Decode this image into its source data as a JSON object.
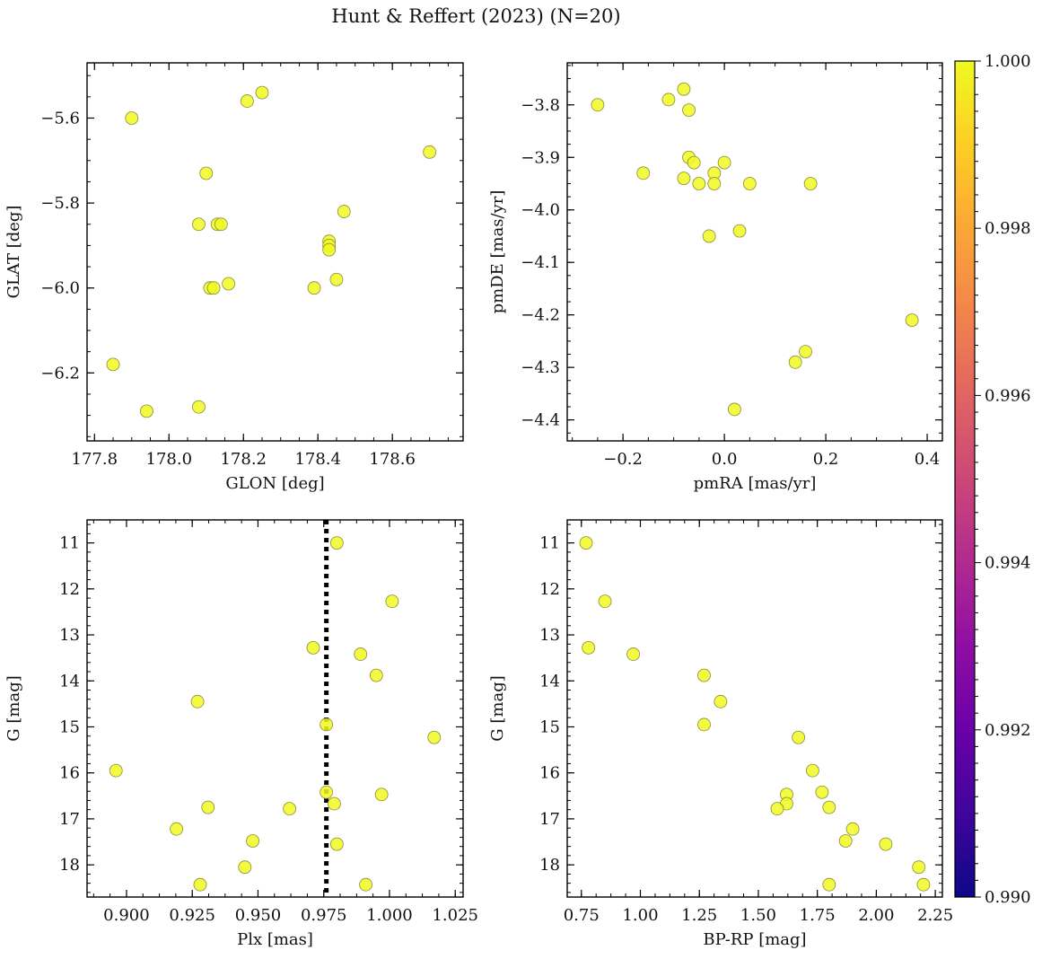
{
  "title": "Hunt & Reffert (2023) (N=20)",
  "colors": {
    "point_fill": "#f0f921",
    "point_edge": "#8a8a3a",
    "frame": "#000000",
    "vline": "#000000"
  },
  "chart_data": [
    {
      "type": "scatter",
      "xlabel": "GLON [deg]",
      "ylabel": "GLAT [deg]",
      "xlim": [
        177.78,
        178.79
      ],
      "ylim": [
        -6.36,
        -5.47
      ],
      "y_inverted": false,
      "xticks": [
        177.8,
        178.0,
        178.2,
        178.4,
        178.6
      ],
      "xtick_labels": [
        "177.8",
        "178.0",
        "178.2",
        "178.4",
        "178.6"
      ],
      "yticks": [
        -5.6,
        -5.8,
        -6.0,
        -6.2
      ],
      "ytick_labels": [
        "−5.6",
        "−5.8",
        "−6.0",
        "−6.2"
      ],
      "x": [
        177.9,
        178.21,
        178.25,
        178.7,
        178.1,
        178.08,
        178.13,
        178.14,
        178.47,
        178.43,
        178.43,
        178.11,
        178.12,
        178.16,
        178.39,
        178.45,
        177.85,
        177.94,
        178.08,
        178.43
      ],
      "y": [
        -5.6,
        -5.56,
        -5.54,
        -5.68,
        -5.73,
        -5.85,
        -5.85,
        -5.85,
        -5.82,
        -5.89,
        -5.9,
        -6.0,
        -6.0,
        -5.99,
        -6.0,
        -5.98,
        -6.18,
        -6.29,
        -6.28,
        -5.91
      ]
    },
    {
      "type": "scatter",
      "xlabel": "pmRA [mas/yr]",
      "ylabel": "pmDE [mas/yr]",
      "xlim": [
        -0.31,
        0.43
      ],
      "ylim": [
        -4.44,
        -3.72
      ],
      "y_inverted": false,
      "xticks": [
        -0.2,
        0.0,
        0.2,
        0.4
      ],
      "xtick_labels": [
        "−0.2",
        "0.0",
        "0.2",
        "0.4"
      ],
      "yticks": [
        -3.8,
        -3.9,
        -4.0,
        -4.1,
        -4.2,
        -4.3,
        -4.4
      ],
      "ytick_labels": [
        "−3.8",
        "−3.9",
        "−4.0",
        "−4.1",
        "−4.2",
        "−4.3",
        "−4.4"
      ],
      "x": [
        -0.25,
        -0.08,
        -0.11,
        -0.07,
        -0.16,
        -0.08,
        -0.07,
        -0.06,
        -0.05,
        -0.02,
        -0.02,
        0.0,
        0.05,
        0.17,
        -0.03,
        0.03,
        0.37,
        0.16,
        0.14,
        0.02
      ],
      "y": [
        -3.8,
        -3.77,
        -3.79,
        -3.81,
        -3.93,
        -3.94,
        -3.9,
        -3.91,
        -3.95,
        -3.93,
        -3.95,
        -3.91,
        -3.95,
        -3.95,
        -4.05,
        -4.04,
        -4.21,
        -4.27,
        -4.29,
        -4.38
      ]
    },
    {
      "type": "scatter",
      "xlabel": "Plx [mas]",
      "ylabel": "G [mag]",
      "xlim": [
        0.885,
        1.028
      ],
      "ylim": [
        18.7,
        10.5
      ],
      "y_inverted": true,
      "vline_x": 0.976,
      "xticks": [
        0.9,
        0.925,
        0.95,
        0.975,
        1.0,
        1.025
      ],
      "xtick_labels": [
        "0.900",
        "0.925",
        "0.950",
        "0.975",
        "1.000",
        "1.025"
      ],
      "yticks": [
        11,
        12,
        13,
        14,
        15,
        16,
        17,
        18
      ],
      "ytick_labels": [
        "11",
        "12",
        "13",
        "14",
        "15",
        "16",
        "17",
        "18"
      ],
      "x": [
        0.98,
        1.001,
        0.971,
        0.989,
        0.995,
        0.927,
        0.976,
        1.017,
        0.896,
        0.976,
        0.997,
        0.979,
        0.962,
        0.931,
        0.919,
        0.948,
        0.98,
        0.945,
        0.928,
        0.991
      ],
      "y": [
        11.0,
        12.27,
        13.28,
        13.42,
        13.88,
        14.45,
        14.95,
        15.23,
        15.95,
        16.42,
        16.47,
        16.67,
        16.78,
        16.75,
        17.22,
        17.48,
        17.55,
        18.05,
        18.43,
        18.43
      ]
    },
    {
      "type": "scatter",
      "xlabel": "BP-RP [mag]",
      "ylabel": "G [mag]",
      "xlim": [
        0.69,
        2.28
      ],
      "ylim": [
        18.7,
        10.5
      ],
      "y_inverted": true,
      "xticks": [
        0.75,
        1.0,
        1.25,
        1.5,
        1.75,
        2.0,
        2.25
      ],
      "xtick_labels": [
        "0.75",
        "1.00",
        "1.25",
        "1.50",
        "1.75",
        "2.00",
        "2.25"
      ],
      "yticks": [
        11,
        12,
        13,
        14,
        15,
        16,
        17,
        18
      ],
      "ytick_labels": [
        "11",
        "12",
        "13",
        "14",
        "15",
        "16",
        "17",
        "18"
      ],
      "x": [
        0.77,
        0.85,
        0.78,
        0.97,
        1.27,
        1.34,
        1.27,
        1.67,
        1.73,
        1.62,
        1.77,
        1.62,
        1.58,
        1.8,
        1.9,
        1.87,
        2.04,
        2.18,
        1.8,
        2.2
      ],
      "y": [
        11.0,
        12.27,
        13.28,
        13.42,
        13.88,
        14.45,
        14.95,
        15.23,
        15.95,
        16.47,
        16.42,
        16.67,
        16.78,
        16.75,
        17.22,
        17.48,
        17.55,
        18.05,
        18.43,
        18.43
      ]
    }
  ],
  "colorbar": {
    "range": [
      0.99,
      1.0
    ],
    "ticks": [
      0.99,
      0.992,
      0.994,
      0.996,
      0.998,
      1.0
    ],
    "tick_labels": [
      "0.990",
      "0.992",
      "0.994",
      "0.996",
      "0.998",
      "1.000"
    ],
    "colormap": "plasma"
  }
}
